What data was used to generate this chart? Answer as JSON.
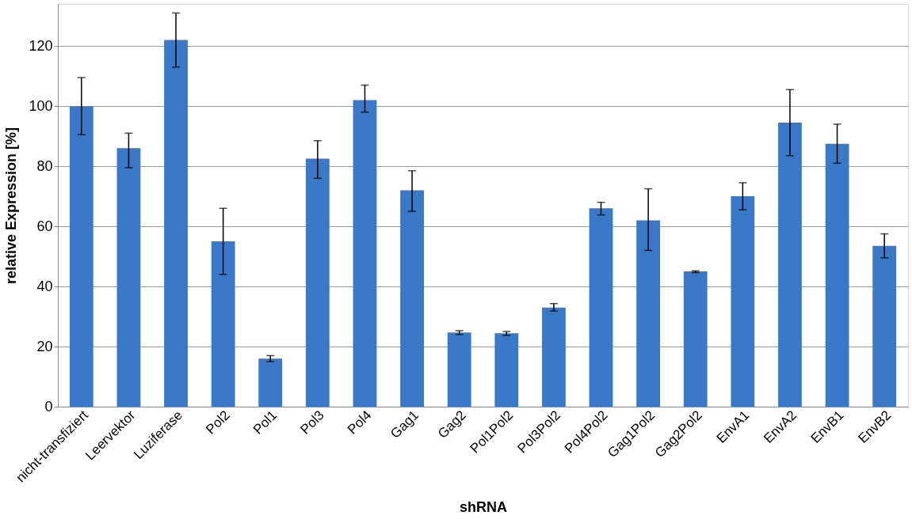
{
  "chart_data": {
    "type": "bar",
    "xlabel": "shRNA",
    "ylabel": "relative Expression [%]",
    "categories": [
      "nicht-transfiziert",
      "Leervektor",
      "Luziferase",
      "Pol2",
      "Pol1",
      "Pol3",
      "Pol4",
      "Gag1",
      "Gag2",
      "Pol1Pol2",
      "Pol3Pol2",
      "Pol4Pol2",
      "Gag1Pol2",
      "Gag2Pol2",
      "EnvA1",
      "EnvA2",
      "EnvB1",
      "EnvB2"
    ],
    "values": [
      100,
      86,
      122,
      55,
      16,
      82.5,
      102,
      72,
      24.7,
      24.4,
      33,
      66,
      62,
      45,
      70,
      94.5,
      87.5,
      53.5
    ],
    "color": "#3a78c8",
    "errors": [
      [
        90.5,
        109.5
      ],
      [
        79.5,
        91
      ],
      [
        113,
        131
      ],
      [
        44,
        66
      ],
      [
        15,
        17
      ],
      [
        76,
        88.5
      ],
      [
        98,
        107
      ],
      [
        65,
        78.5
      ],
      [
        24,
        25.3
      ],
      [
        23.7,
        25
      ],
      [
        31.8,
        34.3
      ],
      [
        63.8,
        68
      ],
      [
        52,
        72.5
      ],
      [
        44.6,
        45.2
      ],
      [
        65.5,
        74.5
      ],
      [
        83.5,
        105.5
      ],
      [
        81,
        94
      ],
      [
        49.5,
        57.5
      ]
    ],
    "ylim": [
      0,
      134
    ],
    "yticks": [
      0,
      20,
      40,
      60,
      80,
      100,
      120
    ],
    "grid": "y"
  }
}
